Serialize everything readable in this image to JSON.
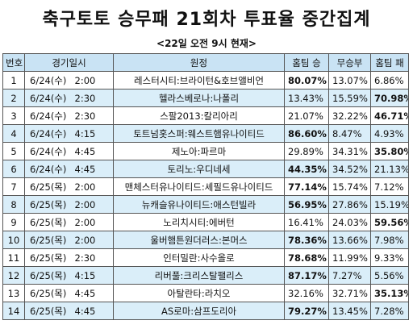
{
  "title": "축구토토 승무패 21회차 투표율 중간집계",
  "subtitle": "<22일 오전 9시 현재>",
  "headers": {
    "no": "번호",
    "datetime": "경기일시",
    "match": "원정",
    "home_win": "홈팀 승",
    "draw": "무승부",
    "home_loss": "홈팀 패"
  },
  "rows": [
    {
      "no": "1",
      "date": "6/24(수)",
      "time": "2:00",
      "match": "레스터시티:브라이턴&호브앨비언",
      "win": "80.07%",
      "draw": "13.07%",
      "loss": "6.86%",
      "bold": "win"
    },
    {
      "no": "2",
      "date": "6/24(수)",
      "time": "2:30",
      "match": "헬라스베로나:나폴리",
      "win": "13.43%",
      "draw": "15.59%",
      "loss": "70.98%",
      "bold": "loss"
    },
    {
      "no": "3",
      "date": "6/24(수)",
      "time": "2:30",
      "match": "스팔2013:칼리아리",
      "win": "21.07%",
      "draw": "32.22%",
      "loss": "46.71%",
      "bold": "loss"
    },
    {
      "no": "4",
      "date": "6/24(수)",
      "time": "4:15",
      "match": "토트넘홋스퍼:웨스트햄유나이티드",
      "win": "86.60%",
      "draw": "8.47%",
      "loss": "4.93%",
      "bold": "win"
    },
    {
      "no": "5",
      "date": "6/24(수)",
      "time": "4:45",
      "match": "제노아:파르마",
      "win": "29.89%",
      "draw": "34.31%",
      "loss": "35.80%",
      "bold": "loss"
    },
    {
      "no": "6",
      "date": "6/24(수)",
      "time": "4:45",
      "match": "토리노:우디네세",
      "win": "44.35%",
      "draw": "34.52%",
      "loss": "21.13%",
      "bold": "win"
    },
    {
      "no": "7",
      "date": "6/25(목)",
      "time": "2:00",
      "match": "맨체스터유나이티드:셰필드유나이티드",
      "win": "77.14%",
      "draw": "15.74%",
      "loss": "7.12%",
      "bold": "win"
    },
    {
      "no": "8",
      "date": "6/25(목)",
      "time": "2:00",
      "match": "뉴캐슬유나이티드:애스턴빌라",
      "win": "56.95%",
      "draw": "27.86%",
      "loss": "15.19%",
      "bold": "win"
    },
    {
      "no": "9",
      "date": "6/25(목)",
      "time": "2:00",
      "match": "노리치시티:에버턴",
      "win": "16.41%",
      "draw": "24.03%",
      "loss": "59.56%",
      "bold": "loss"
    },
    {
      "no": "10",
      "date": "6/25(목)",
      "time": "2:00",
      "match": "울버햄튼원더러스:본머스",
      "win": "78.36%",
      "draw": "13.66%",
      "loss": "7.98%",
      "bold": "win"
    },
    {
      "no": "11",
      "date": "6/25(목)",
      "time": "2:30",
      "match": "인터밀란:사수올로",
      "win": "78.68%",
      "draw": "11.99%",
      "loss": "9.33%",
      "bold": "win"
    },
    {
      "no": "12",
      "date": "6/25(목)",
      "time": "4:15",
      "match": "리버풀:크리스탈팰리스",
      "win": "87.17%",
      "draw": "7.27%",
      "loss": "5.56%",
      "bold": "win"
    },
    {
      "no": "13",
      "date": "6/25(목)",
      "time": "4:45",
      "match": "아탈란타:라치오",
      "win": "32.16%",
      "draw": "32.71%",
      "loss": "35.13%",
      "bold": "loss"
    },
    {
      "no": "14",
      "date": "6/25(목)",
      "time": "4:45",
      "match": "AS로마:삼프도리아",
      "win": "79.27%",
      "draw": "13.45%",
      "loss": "7.28%",
      "bold": "win"
    }
  ]
}
